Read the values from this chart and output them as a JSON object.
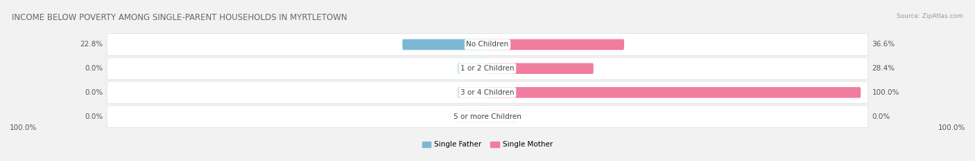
{
  "title": "INCOME BELOW POVERTY AMONG SINGLE-PARENT HOUSEHOLDS IN MYRTLETOWN",
  "source": "Source: ZipAtlas.com",
  "categories": [
    "No Children",
    "1 or 2 Children",
    "3 or 4 Children",
    "5 or more Children"
  ],
  "single_father": [
    22.8,
    0.0,
    0.0,
    0.0
  ],
  "single_mother": [
    36.6,
    28.4,
    100.0,
    0.0
  ],
  "father_color": "#7bb8d4",
  "mother_color": "#f07ca0",
  "father_label": "Single Father",
  "mother_label": "Single Mother",
  "bg_color": "#f2f2f2",
  "row_bg_color": "#ffffff",
  "max_val": 100.0,
  "axis_left_label": "100.0%",
  "axis_right_label": "100.0%",
  "title_fontsize": 8.5,
  "source_fontsize": 6.5,
  "label_fontsize": 7.5,
  "annotation_fontsize": 7.5,
  "category_fontsize": 7.5
}
